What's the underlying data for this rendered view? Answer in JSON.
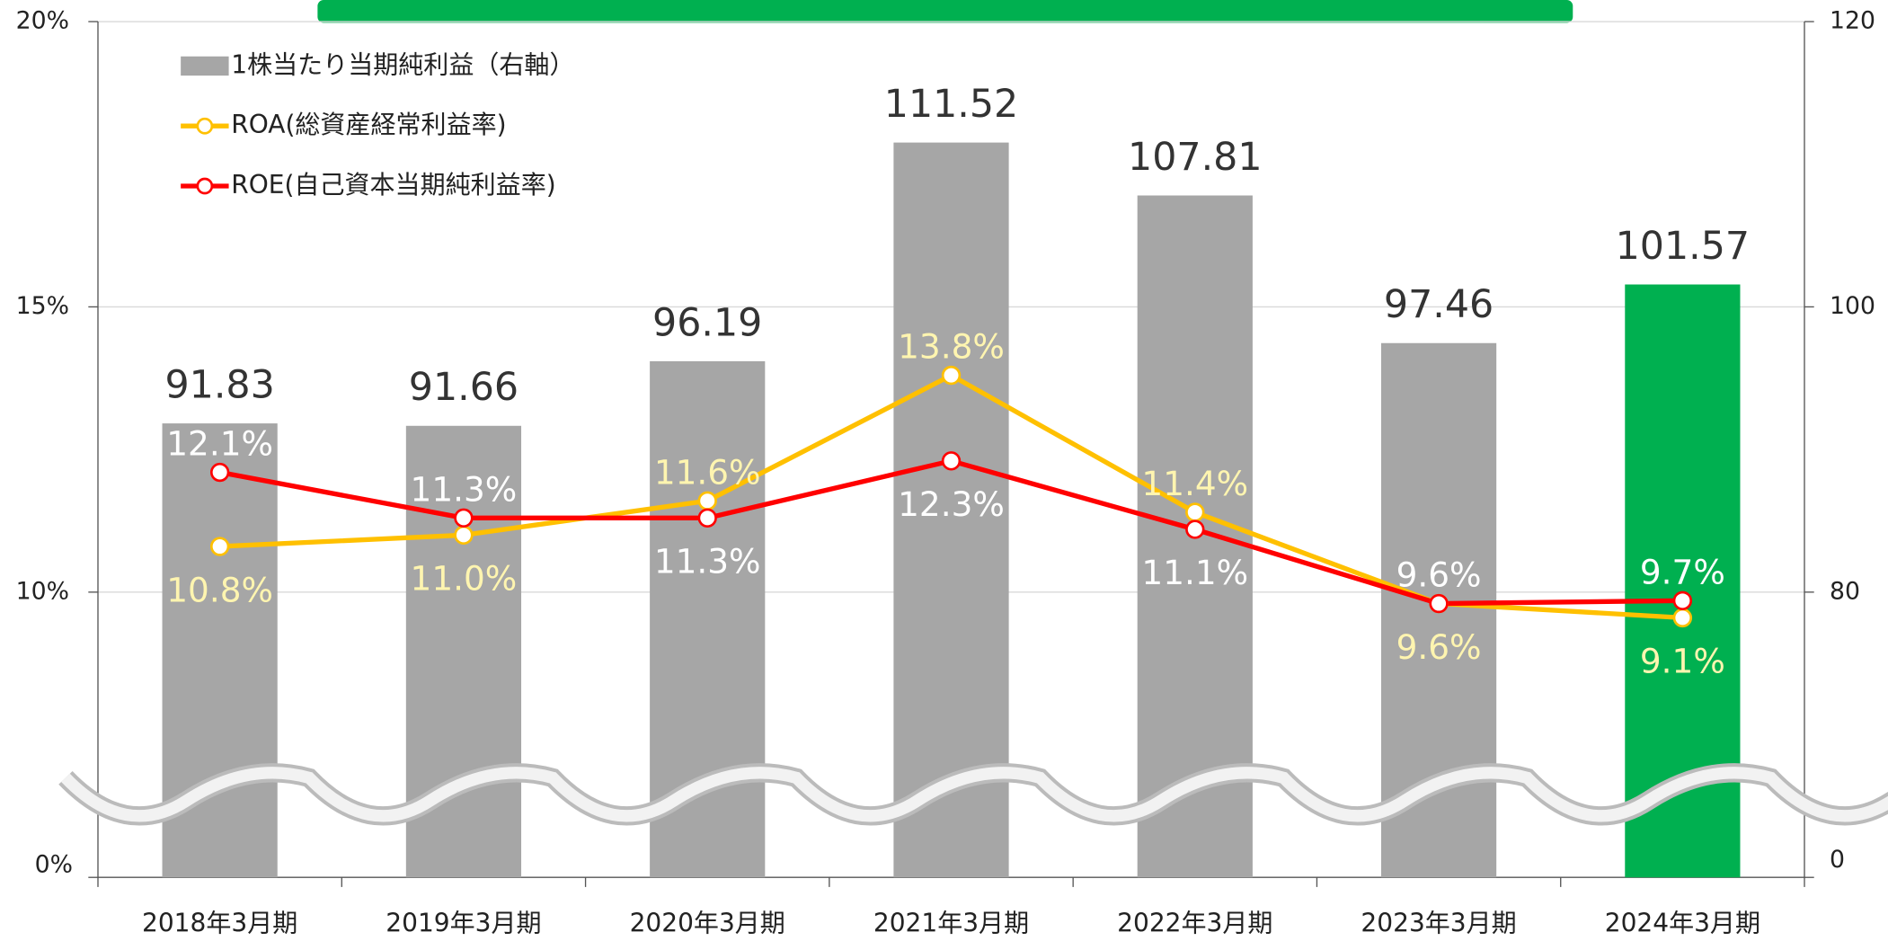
{
  "chart_data": {
    "type": "bar_line",
    "categories": [
      "2018年3月期",
      "2019年3月期",
      "2020年3月期",
      "2021年3月期",
      "2022年3月期",
      "2023年3月期",
      "2024年3月期"
    ],
    "ylim": [
      0,
      20
    ],
    "yticks": [
      {
        "value": 0,
        "label": "0%"
      },
      {
        "value": 10,
        "label": "10%"
      },
      {
        "value": 15,
        "label": "15%"
      },
      {
        "value": 20,
        "label": "20%"
      }
    ],
    "y2lim": [
      0,
      120
    ],
    "y2ticks": [
      0,
      80,
      100,
      120
    ],
    "axis_break": true,
    "series": [
      {
        "name": "1株当たり当期純利益（右軸）",
        "type": "bar",
        "axis": "y2",
        "color": "#a6a6a6",
        "colors": [
          "#a6a6a6",
          "#a6a6a6",
          "#a6a6a6",
          "#a6a6a6",
          "#a6a6a6",
          "#a6a6a6",
          "#00b050"
        ],
        "values": [
          91.83,
          91.66,
          96.19,
          111.52,
          107.81,
          97.46,
          101.57
        ]
      },
      {
        "name": "ROA(総資産経常利益率)",
        "type": "line",
        "color": "#ffc000",
        "label_color": "#fff5b0",
        "values": [
          10.8,
          11.0,
          11.6,
          13.8,
          11.4,
          9.6,
          9.1
        ],
        "value_labels": [
          "10.8%",
          "11.0%",
          "11.6%",
          "13.8%",
          "11.4%",
          "9.6%",
          "9.1%"
        ]
      },
      {
        "name": "ROE(自己資本当期純利益率)",
        "type": "line",
        "color": "#ff0000",
        "label_color": "#ffffff",
        "values": [
          12.1,
          11.3,
          11.3,
          12.3,
          11.1,
          9.6,
          9.7
        ],
        "value_labels": [
          "12.1%",
          "11.3%",
          "11.3%",
          "12.3%",
          "11.1%",
          "9.6%",
          "9.7%"
        ]
      }
    ]
  }
}
